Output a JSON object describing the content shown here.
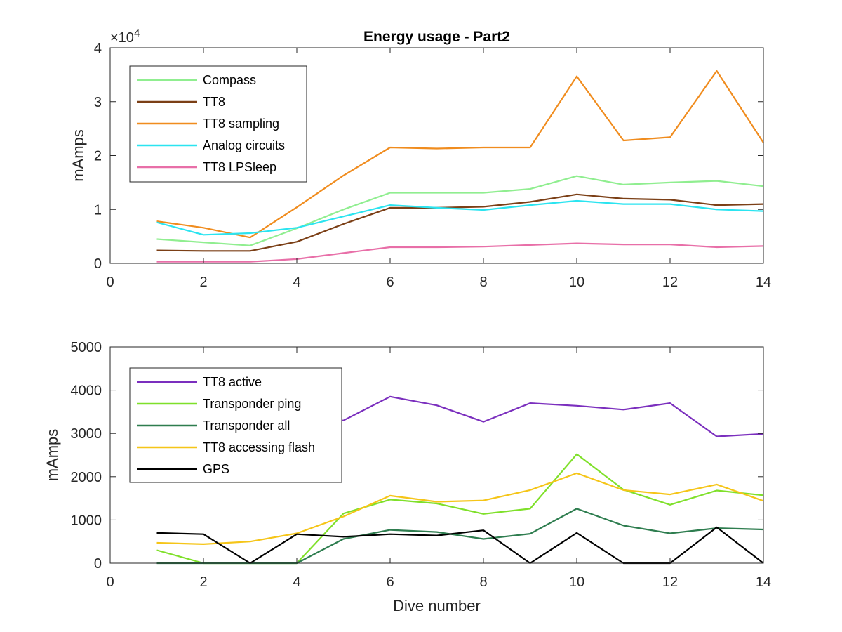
{
  "chart_data": [
    {
      "type": "line",
      "title": "Energy usage - Part2",
      "xlabel": "",
      "ylabel": "mAmps",
      "y_exponent_label": "×10",
      "y_exponent_power": "4",
      "y_scale_factor": 10000,
      "xlim": [
        0,
        14
      ],
      "ylim": [
        0,
        40000
      ],
      "xticks": [
        "0",
        "2",
        "4",
        "6",
        "8",
        "10",
        "12",
        "14"
      ],
      "yticks": [
        "0",
        "1",
        "2",
        "3",
        "4"
      ],
      "legend_position": "top-left",
      "x": [
        1,
        2,
        3,
        4,
        5,
        6,
        7,
        8,
        9,
        10,
        11,
        12,
        13,
        14
      ],
      "series": [
        {
          "name": "Compass",
          "color": "#90ee90",
          "values": [
            4500,
            3900,
            3300,
            6500,
            10000,
            13100,
            13100,
            13100,
            13800,
            16200,
            14600,
            15000,
            15300,
            14300
          ]
        },
        {
          "name": "TT8",
          "color": "#7b3f16",
          "values": [
            2400,
            2300,
            2300,
            4000,
            7300,
            10300,
            10300,
            10500,
            11400,
            12800,
            12000,
            11800,
            10800,
            11000
          ]
        },
        {
          "name": "TT8 sampling",
          "color": "#f08c1e",
          "values": [
            7800,
            6600,
            4800,
            10400,
            16300,
            21500,
            21300,
            21500,
            21500,
            34700,
            22800,
            23400,
            35700,
            22400
          ]
        },
        {
          "name": "Analog circuits",
          "color": "#2be4f0",
          "values": [
            7600,
            5300,
            5600,
            6600,
            8700,
            10800,
            10300,
            9900,
            10800,
            11600,
            11000,
            11000,
            10000,
            9700
          ]
        },
        {
          "name": "TT8 LPSleep",
          "color": "#e86fa8",
          "values": [
            300,
            300,
            300,
            800,
            1900,
            3000,
            3000,
            3100,
            3400,
            3700,
            3500,
            3500,
            3000,
            3200
          ]
        }
      ]
    },
    {
      "type": "line",
      "title": "",
      "xlabel": "Dive number",
      "ylabel": "mAmps",
      "xlim": [
        0,
        14
      ],
      "ylim": [
        0,
        5000
      ],
      "xticks": [
        "0",
        "2",
        "4",
        "6",
        "8",
        "10",
        "12",
        "14"
      ],
      "yticks": [
        "0",
        "1000",
        "2000",
        "3000",
        "4000",
        "5000"
      ],
      "legend_position": "top-left",
      "x": [
        1,
        2,
        3,
        4,
        5,
        6,
        7,
        8,
        9,
        10,
        11,
        12,
        13,
        14
      ],
      "series": [
        {
          "name": "TT8 active",
          "color": "#7b2fbe",
          "values": [
            3300,
            3300,
            3300,
            3300,
            3300,
            3850,
            3650,
            3270,
            3700,
            3640,
            3550,
            3700,
            2930,
            2990
          ]
        },
        {
          "name": "Transponder ping",
          "color": "#7fe02a",
          "values": [
            300,
            0,
            0,
            0,
            1150,
            1470,
            1380,
            1140,
            1260,
            2520,
            1700,
            1350,
            1680,
            1570
          ]
        },
        {
          "name": "Transponder all",
          "color": "#2e7d4f",
          "values": [
            0,
            0,
            0,
            0,
            560,
            770,
            720,
            560,
            680,
            1260,
            870,
            690,
            810,
            780
          ]
        },
        {
          "name": "TT8 accessing flash",
          "color": "#f5c518",
          "values": [
            470,
            440,
            500,
            690,
            1080,
            1560,
            1420,
            1450,
            1690,
            2080,
            1690,
            1590,
            1820,
            1440
          ]
        },
        {
          "name": "GPS",
          "color": "#000000",
          "values": [
            700,
            670,
            0,
            670,
            610,
            670,
            640,
            760,
            0,
            700,
            0,
            0,
            830,
            0
          ]
        }
      ]
    }
  ]
}
